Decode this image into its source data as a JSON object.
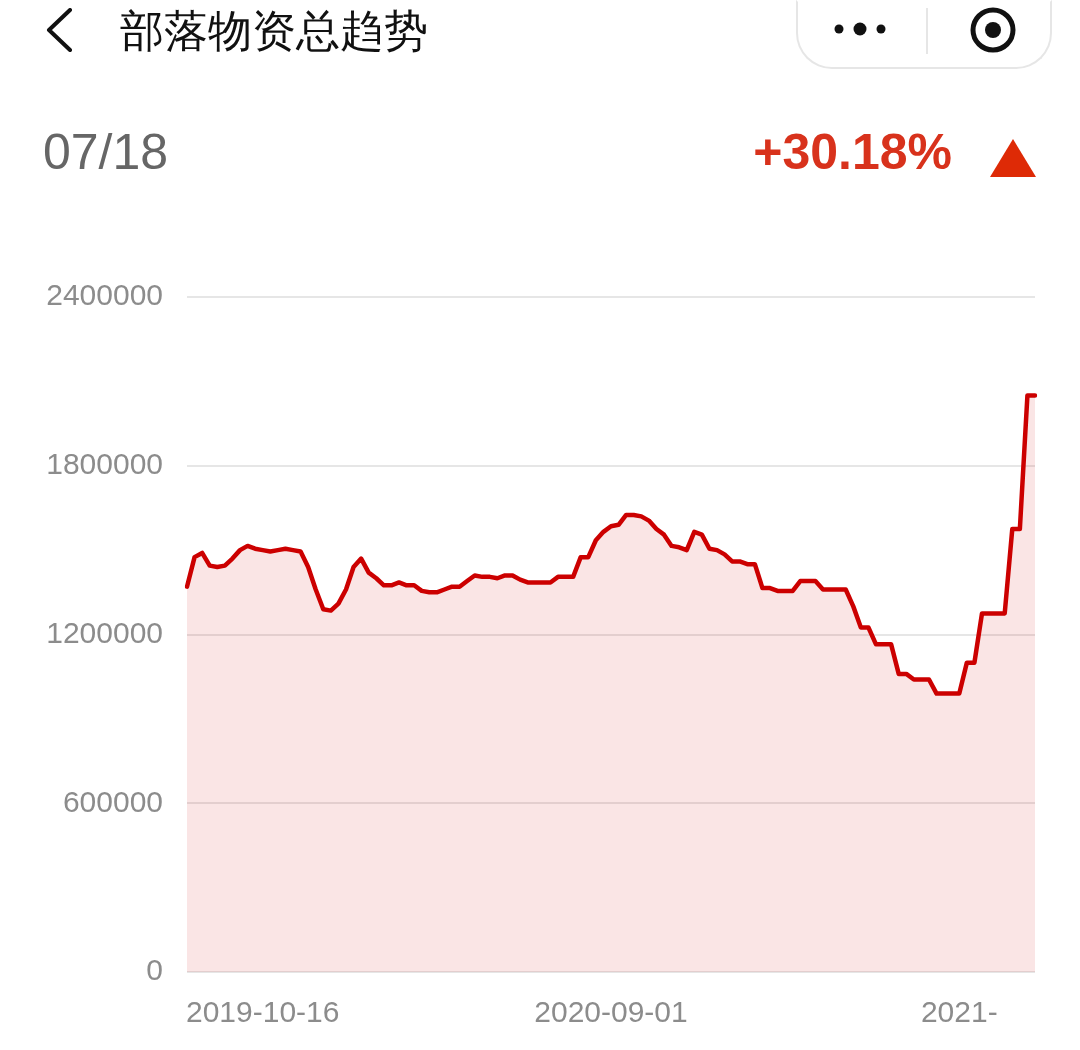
{
  "chart_data": {
    "type": "area",
    "title": "部落物资总趋势",
    "annotations": [
      "07/18",
      "+30.18%"
    ],
    "categories": [
      null,
      null,
      null,
      null,
      null,
      null,
      null,
      null,
      null,
      null,
      "2019-10-16",
      null,
      null,
      null,
      null,
      null,
      null,
      null,
      null,
      null,
      null,
      null,
      null,
      null,
      null,
      null,
      null,
      null,
      null,
      null,
      null,
      null,
      null,
      null,
      null,
      null,
      null,
      null,
      null,
      null,
      null,
      null,
      null,
      null,
      null,
      null,
      null,
      null,
      null,
      null,
      null,
      null,
      null,
      null,
      null,
      null,
      "2020-09-01",
      null,
      null,
      null,
      null,
      null,
      null,
      null,
      null,
      null,
      null,
      null,
      null,
      null,
      null,
      null,
      null,
      null,
      null,
      null,
      null,
      null,
      null,
      null,
      null,
      null,
      null,
      null,
      null,
      null,
      null,
      null,
      null,
      null,
      null,
      null,
      null,
      null,
      null,
      null,
      null,
      null,
      null,
      null,
      null,
      null,
      "2021-",
      null,
      null,
      null,
      null,
      null,
      null,
      null,
      null,
      null,
      null
    ],
    "series": [
      {
        "color": "#cc0000",
        "values": [
          1370000,
          1475000,
          1490000,
          1445000,
          1440000,
          1445000,
          1470000,
          1500000,
          1515000,
          1505000,
          1500000,
          1495000,
          1500000,
          1505000,
          1500000,
          1495000,
          1440000,
          1360000,
          1290000,
          1285000,
          1310000,
          1360000,
          1440000,
          1470000,
          1420000,
          1400000,
          1375000,
          1375000,
          1385000,
          1375000,
          1375000,
          1355000,
          1350000,
          1350000,
          1360000,
          1370000,
          1370000,
          1390000,
          1410000,
          1405000,
          1405000,
          1400000,
          1410000,
          1410000,
          1395000,
          1385000,
          1385000,
          1385000,
          1385000,
          1405000,
          1405000,
          1405000,
          1475000,
          1475000,
          1535000,
          1565000,
          1585000,
          1590000,
          1625000,
          1625000,
          1620000,
          1605000,
          1575000,
          1555000,
          1515000,
          1510000,
          1500000,
          1565000,
          1555000,
          1505000,
          1500000,
          1485000,
          1460000,
          1460000,
          1450000,
          1450000,
          1365000,
          1365000,
          1355000,
          1355000,
          1355000,
          1390000,
          1390000,
          1390000,
          1360000,
          1360000,
          1360000,
          1360000,
          1300000,
          1225000,
          1225000,
          1165000,
          1165000,
          1165000,
          1060000,
          1060000,
          1040000,
          1040000,
          1040000,
          990000,
          990000,
          990000,
          990000,
          1100000,
          1100000,
          1275000,
          1275000,
          1275000,
          1275000,
          1575000,
          1575000,
          2050000,
          2050000
        ]
      }
    ],
    "ylim": [
      0,
      2400000
    ],
    "yticks": [
      0,
      600000,
      1200000,
      1800000,
      2400000
    ],
    "grid": "y",
    "marker": "none",
    "line_style": "solid"
  }
}
